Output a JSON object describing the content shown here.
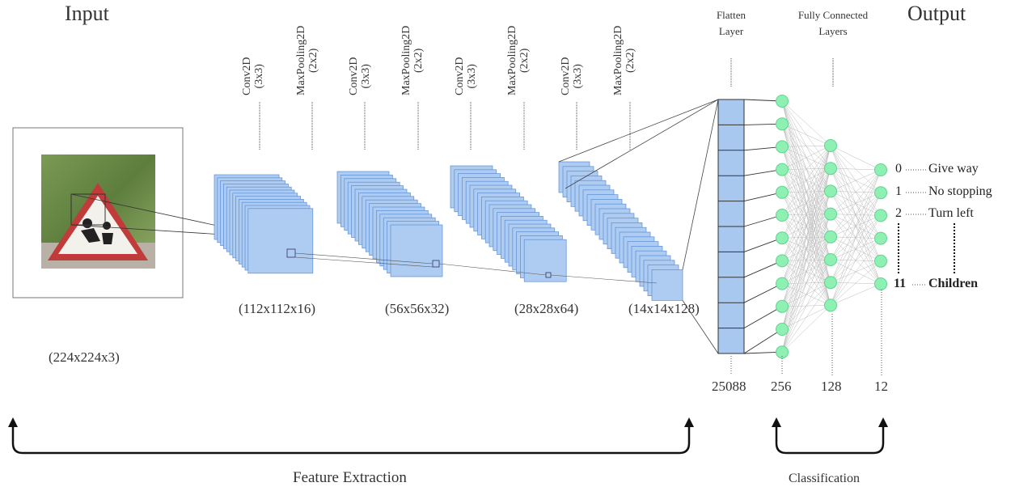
{
  "header": {
    "input_title": "Input",
    "flatten_title_line1": "Flatten",
    "flatten_title_line2": "Layer",
    "fc_title_line1": "Fully Connected",
    "fc_title_line2": "Layers",
    "output_title": "Output"
  },
  "layer_labels": [
    {
      "name": "Conv2D",
      "kernel": "(3x3)"
    },
    {
      "name": "MaxPooling2D",
      "kernel": "(2x2)"
    },
    {
      "name": "Conv2D",
      "kernel": "(3x3)"
    },
    {
      "name": "MaxPooling2D",
      "kernel": "(2x2)"
    },
    {
      "name": "Conv2D",
      "kernel": "(3x3)"
    },
    {
      "name": "MaxPooling2D",
      "kernel": "(2x2)"
    },
    {
      "name": "Conv2D",
      "kernel": "(3x3)"
    },
    {
      "name": "MaxPooling2D",
      "kernel": "(2x2)"
    }
  ],
  "feature_maps": [
    {
      "dims": "(112x112x16)",
      "depth": 12
    },
    {
      "dims": "(56x56x32)",
      "depth": 16
    },
    {
      "dims": "(28x28x64)",
      "depth": 20
    },
    {
      "dims": "(14x14x128)",
      "depth": 24
    }
  ],
  "input_dims": "(224x224x3)",
  "layer_sizes": {
    "flatten": "25088",
    "fc1": "256",
    "fc2": "128",
    "output": "12"
  },
  "outputs": [
    {
      "index": "0",
      "label": "Give way"
    },
    {
      "index": "1",
      "label": "No stopping"
    },
    {
      "index": "2",
      "label": "Turn left"
    },
    {
      "index": "11",
      "label": "Children"
    }
  ],
  "sections": {
    "feature_extraction": "Feature Extraction",
    "classification": "Classification"
  },
  "colors": {
    "feature_map_fill": "#aecbf2",
    "feature_map_stroke": "#5b8fd6",
    "flatten_fill": "#a9c8f0",
    "neuron_fill": "#8ff0b4",
    "neuron_stroke": "#5fd48e"
  }
}
